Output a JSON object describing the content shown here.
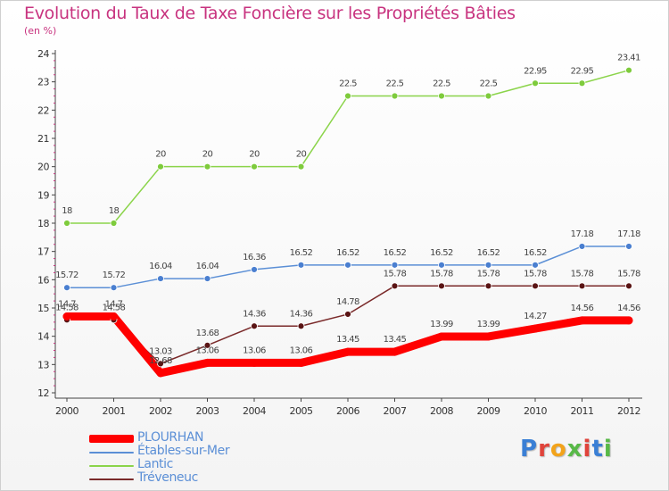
{
  "logo": {
    "text": "Proxiti",
    "letter_colors": [
      "#3a7fd5",
      "#e0443b",
      "#f2a31b",
      "#58b947",
      "#e0443b",
      "#3a7fd5",
      "#58b947"
    ]
  },
  "chart_data": {
    "type": "line",
    "title": "Evolution du Taux de Taxe Foncière sur les Propriétés Bâties",
    "unit_label": "(en %)",
    "xlabel": "",
    "ylabel": "(en %)",
    "ylim": [
      12,
      24
    ],
    "y_ticks": [
      "12",
      "13",
      "14",
      "15",
      "16",
      "17",
      "18",
      "19",
      "20",
      "21",
      "22",
      "23",
      "24"
    ],
    "grid": false,
    "legend_position": "bottom-left",
    "x": [
      "2000",
      "2001",
      "2002",
      "2003",
      "2004",
      "2005",
      "2006",
      "2007",
      "2008",
      "2009",
      "2010",
      "2011",
      "2012"
    ],
    "series": [
      {
        "name": "PLOURHAN",
        "color": "#ff0000",
        "marker_color": "#ff0000",
        "bold": true,
        "values": [
          14.7,
          14.7,
          12.7,
          13.06,
          13.06,
          13.06,
          13.45,
          13.45,
          13.99,
          13.99,
          14.27,
          14.56,
          14.56
        ],
        "labels": [
          "14.7",
          "14.7",
          "12.68",
          "13.06",
          "13.06",
          "13.06",
          "13.45",
          "13.45",
          "13.99",
          "13.99",
          "14.27",
          "14.56",
          "14.56"
        ]
      },
      {
        "name": "Étables-sur-Mer",
        "color": "#5b8fd6",
        "marker_color": "#4a7fd0",
        "bold": false,
        "values": [
          15.72,
          15.72,
          16.04,
          16.04,
          16.36,
          16.52,
          16.52,
          16.52,
          16.52,
          16.52,
          16.52,
          17.18,
          17.18
        ],
        "labels": [
          "15.72",
          "15.72",
          "16.04",
          "16.04",
          "16.36",
          "16.52",
          "16.52",
          "16.52",
          "16.52",
          "16.52",
          "16.52",
          "17.18",
          "17.18"
        ]
      },
      {
        "name": "Lantic",
        "color": "#8bd44a",
        "marker_color": "#7ecb3c",
        "bold": false,
        "values": [
          18,
          18,
          20,
          20,
          20,
          20,
          22.5,
          22.5,
          22.5,
          22.5,
          22.95,
          22.95,
          23.41
        ],
        "labels": [
          "18",
          "18",
          "20",
          "20",
          "20",
          "20",
          "22.5",
          "22.5",
          "22.5",
          "22.5",
          "22.95",
          "22.95",
          "23.41"
        ]
      },
      {
        "name": "Tréveneuc",
        "color": "#7a2a2a",
        "marker_color": "#5a1414",
        "bold": false,
        "values": [
          14.58,
          14.58,
          13.03,
          13.68,
          14.36,
          14.36,
          14.78,
          15.78,
          15.78,
          15.78,
          15.78,
          15.78,
          15.78
        ],
        "labels": [
          "14.58",
          "14.58",
          "13.03",
          "13.68",
          "14.36",
          "14.36",
          "14.78",
          "15.78",
          "15.78",
          "15.78",
          "15.78",
          "15.78",
          "15.78"
        ]
      }
    ]
  }
}
